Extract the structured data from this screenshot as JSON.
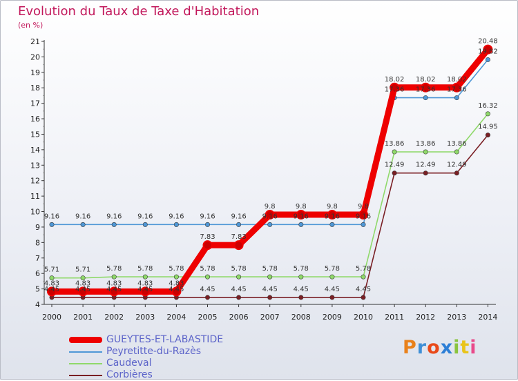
{
  "title": "Evolution du Taux de Taxe d'Habitation",
  "unit": "(en %)",
  "logo": {
    "text": "Proxiti",
    "letters": [
      "P",
      "r",
      "o",
      "x",
      "i",
      "t",
      "i"
    ],
    "colors": [
      "#e9811a",
      "#3f8fd6",
      "#e94a1a",
      "#2d7fd6",
      "#8ac43f",
      "#e9c41a",
      "#e94a8a"
    ]
  },
  "chart_data": {
    "type": "line",
    "title": "Evolution du Taux de Taxe d'Habitation",
    "ylabel": "(en %)",
    "xlabel": "",
    "ylim": [
      4,
      21
    ],
    "yticks": [
      "4",
      "5",
      "6",
      "7",
      "8",
      "9",
      "10",
      "11",
      "12",
      "13",
      "14",
      "15",
      "16",
      "17",
      "18",
      "19",
      "20",
      "21"
    ],
    "categories": [
      "2000",
      "2001",
      "2002",
      "2003",
      "2004",
      "2005",
      "2006",
      "2007",
      "2008",
      "2009",
      "2010",
      "2011",
      "2012",
      "2013",
      "2014"
    ],
    "grid": false,
    "legend_placement": "bottom-left",
    "series": [
      {
        "name": "Corbières",
        "color": "#7a1f24",
        "values": [
          4.45,
          4.45,
          4.45,
          4.45,
          4.45,
          4.45,
          4.45,
          4.45,
          4.45,
          4.45,
          4.45,
          12.49,
          12.49,
          12.49,
          14.95
        ],
        "labels": [
          "4.45",
          "4.45",
          "4.45",
          "4.45",
          "4.45",
          "4.45",
          "4.45",
          "4.45",
          "4.45",
          "4.45",
          "4.45",
          "12.49",
          "12.49",
          "12.49",
          "14.95"
        ]
      },
      {
        "name": "Caudeval",
        "color": "#8fd96a",
        "values": [
          5.71,
          5.71,
          5.78,
          5.78,
          5.78,
          5.78,
          5.78,
          5.78,
          5.78,
          5.78,
          5.78,
          13.86,
          13.86,
          13.86,
          16.32
        ],
        "labels": [
          "5.71",
          "5.71",
          "5.78",
          "5.78",
          "5.78",
          "5.78",
          "5.78",
          "5.78",
          "5.78",
          "5.78",
          "5.78",
          "13.86",
          "13.86",
          "13.86",
          "16.32"
        ]
      },
      {
        "name": "Peyretitte-du-Razès",
        "color": "#4f97d6",
        "values": [
          9.16,
          9.16,
          9.16,
          9.16,
          9.16,
          9.16,
          9.16,
          9.16,
          9.16,
          9.16,
          9.16,
          17.36,
          17.36,
          17.36,
          19.82
        ],
        "labels": [
          "9.16",
          "9.16",
          "9.16",
          "9.16",
          "9.16",
          "9.16",
          "9.16",
          "9.16",
          "9.16",
          "9.16",
          "9.16",
          "17.36",
          "17.36",
          "17.36",
          "19.82"
        ]
      },
      {
        "name": "GUEYTES-ET-LABASTIDE",
        "color": "#ee0000",
        "values": [
          4.83,
          4.83,
          4.83,
          4.83,
          4.83,
          7.83,
          7.83,
          9.8,
          9.8,
          9.8,
          9.8,
          18.02,
          18.02,
          18.02,
          20.48
        ],
        "labels": [
          "4.83",
          "4.83",
          "4.83",
          "4.83",
          "4.83",
          "7.83",
          "7.83",
          "9.8",
          "9.8",
          "9.8",
          "9.8",
          "18.02",
          "18.02",
          "18.02",
          "20.48"
        ]
      }
    ],
    "legend": [
      "GUEYTES-ET-LABASTIDE",
      "Peyretitte-du-Razès",
      "Caudeval",
      "Corbières"
    ]
  }
}
